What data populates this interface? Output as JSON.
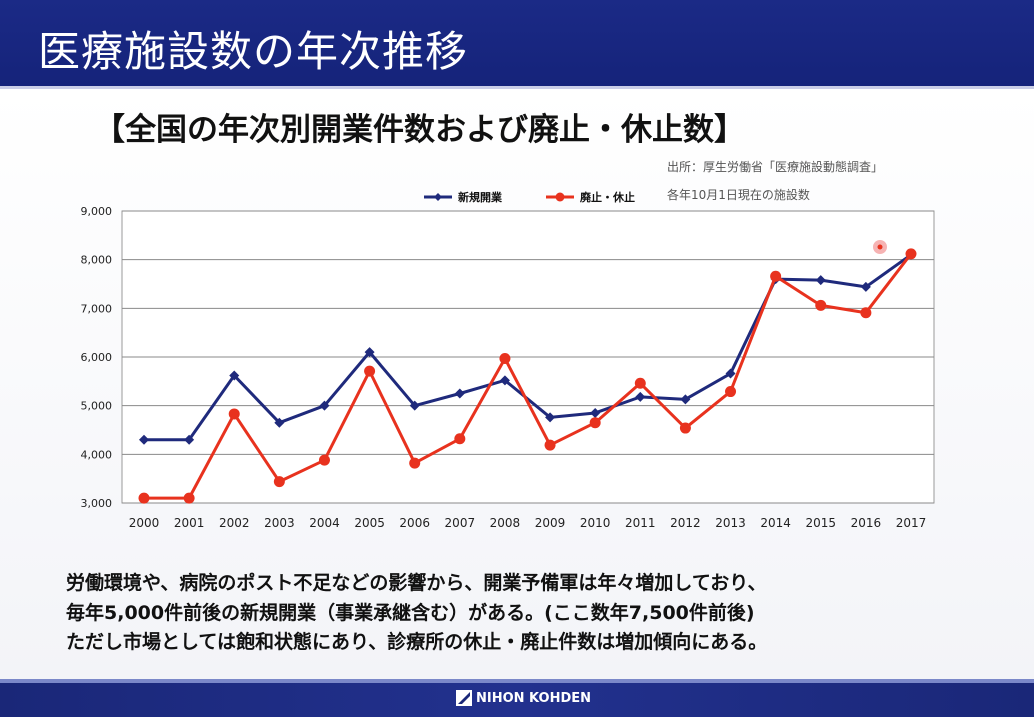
{
  "slide": {
    "title": "医療施設数の年次推移",
    "chart_title": "【全国の年次別開業件数および廃止・休止数】",
    "source_line1": "出所：厚生労働省「医療施設動態調査」",
    "source_line2": "各年10月1日現在の施設数",
    "description": [
      "労働環境や、病院のポスト不足などの影響から、開業予備軍は年々増加しており、",
      "毎年5,000件前後の新規開業（事業承継含む）がある。(ここ数年7,500件前後)",
      "ただし市場としては飽和状態にあり、診療所の休止・廃止件数は増加傾向にある。"
    ],
    "footer_logo": "NIHON KOHDEN"
  },
  "chart_data": {
    "type": "line",
    "categories": [
      "2000",
      "2001",
      "2002",
      "2003",
      "2004",
      "2005",
      "2006",
      "2007",
      "2008",
      "2009",
      "2010",
      "2011",
      "2012",
      "2013",
      "2014",
      "2015",
      "2016",
      "2017"
    ],
    "series": [
      {
        "name": "新規開業",
        "color": "#1f2a7c",
        "marker": "diamond",
        "values": [
          4300,
          4300,
          5620,
          4650,
          5000,
          6100,
          5000,
          5250,
          5520,
          4760,
          4850,
          5180,
          5130,
          5660,
          7600,
          7580,
          7440,
          8100
        ]
      },
      {
        "name": "廃止・休止",
        "color": "#e8321e",
        "marker": "circle",
        "values": [
          3100,
          3100,
          4830,
          3440,
          3880,
          5710,
          3820,
          4320,
          5970,
          4190,
          4650,
          5460,
          4540,
          5290,
          7660,
          7060,
          6910,
          8120
        ]
      }
    ],
    "ylim": [
      3000,
      9000
    ],
    "yticks": [
      "3,000",
      "4,000",
      "5,000",
      "6,000",
      "7,000",
      "8,000",
      "9,000"
    ],
    "grid": true,
    "legend": "top-center"
  }
}
